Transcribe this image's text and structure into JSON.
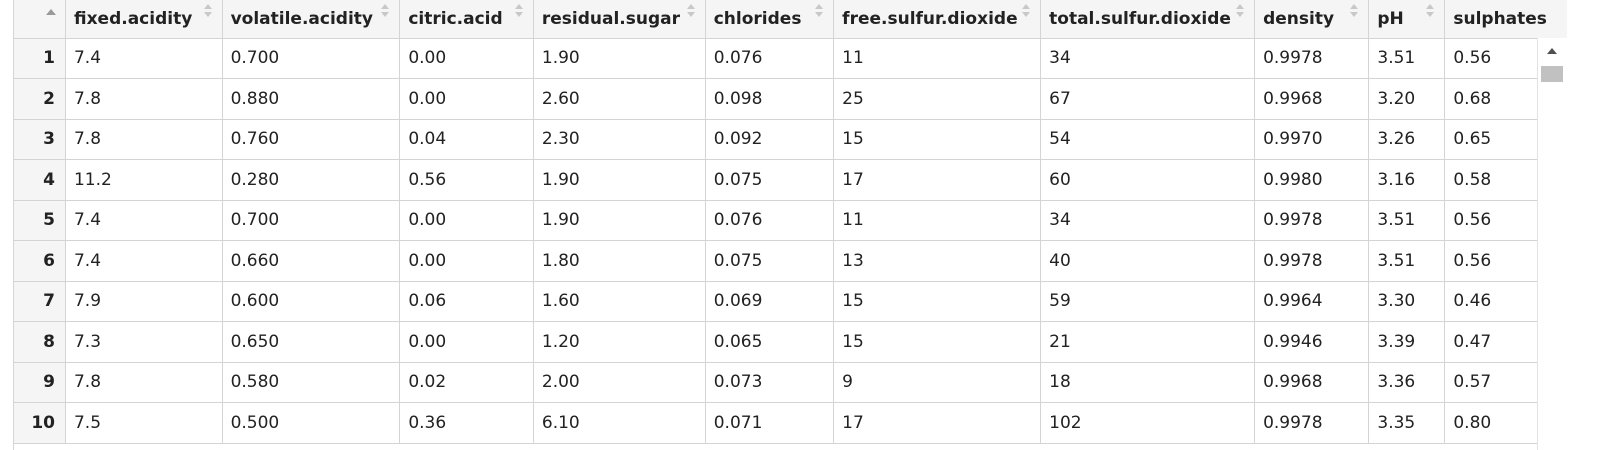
{
  "table": {
    "columns": [
      "fixed.acidity",
      "volatile.acidity",
      "citric.acid",
      "residual.sugar",
      "chlorides",
      "free.sulfur.dioxide",
      "total.sulfur.dioxide",
      "density",
      "pH",
      "sulphates"
    ],
    "rows": [
      {
        "num": "1",
        "cells": [
          "7.4",
          "0.700",
          "0.00",
          "1.90",
          "0.076",
          "11",
          "34",
          "0.9978",
          "3.51",
          "0.56"
        ]
      },
      {
        "num": "2",
        "cells": [
          "7.8",
          "0.880",
          "0.00",
          "2.60",
          "0.098",
          "25",
          "67",
          "0.9968",
          "3.20",
          "0.68"
        ]
      },
      {
        "num": "3",
        "cells": [
          "7.8",
          "0.760",
          "0.04",
          "2.30",
          "0.092",
          "15",
          "54",
          "0.9970",
          "3.26",
          "0.65"
        ]
      },
      {
        "num": "4",
        "cells": [
          "11.2",
          "0.280",
          "0.56",
          "1.90",
          "0.075",
          "17",
          "60",
          "0.9980",
          "3.16",
          "0.58"
        ]
      },
      {
        "num": "5",
        "cells": [
          "7.4",
          "0.700",
          "0.00",
          "1.90",
          "0.076",
          "11",
          "34",
          "0.9978",
          "3.51",
          "0.56"
        ]
      },
      {
        "num": "6",
        "cells": [
          "7.4",
          "0.660",
          "0.00",
          "1.80",
          "0.075",
          "13",
          "40",
          "0.9978",
          "3.51",
          "0.56"
        ]
      },
      {
        "num": "7",
        "cells": [
          "7.9",
          "0.600",
          "0.06",
          "1.60",
          "0.069",
          "15",
          "59",
          "0.9964",
          "3.30",
          "0.46"
        ]
      },
      {
        "num": "8",
        "cells": [
          "7.3",
          "0.650",
          "0.00",
          "1.20",
          "0.065",
          "15",
          "21",
          "0.9946",
          "3.39",
          "0.47"
        ]
      },
      {
        "num": "9",
        "cells": [
          "7.8",
          "0.580",
          "0.02",
          "2.00",
          "0.073",
          "9",
          "18",
          "0.9968",
          "3.36",
          "0.57"
        ]
      },
      {
        "num": "10",
        "cells": [
          "7.5",
          "0.500",
          "0.36",
          "6.10",
          "0.071",
          "17",
          "102",
          "0.9978",
          "3.35",
          "0.80"
        ]
      }
    ]
  },
  "colors": {
    "header_bg": "#f5f5f5",
    "grid_line": "#d4d4d4",
    "text": "#222222"
  },
  "icons": {
    "row_sort": "triangle-up-icon",
    "column_sort": "sort-arrows-icon",
    "scroll_up": "scroll-up-arrow-icon"
  }
}
